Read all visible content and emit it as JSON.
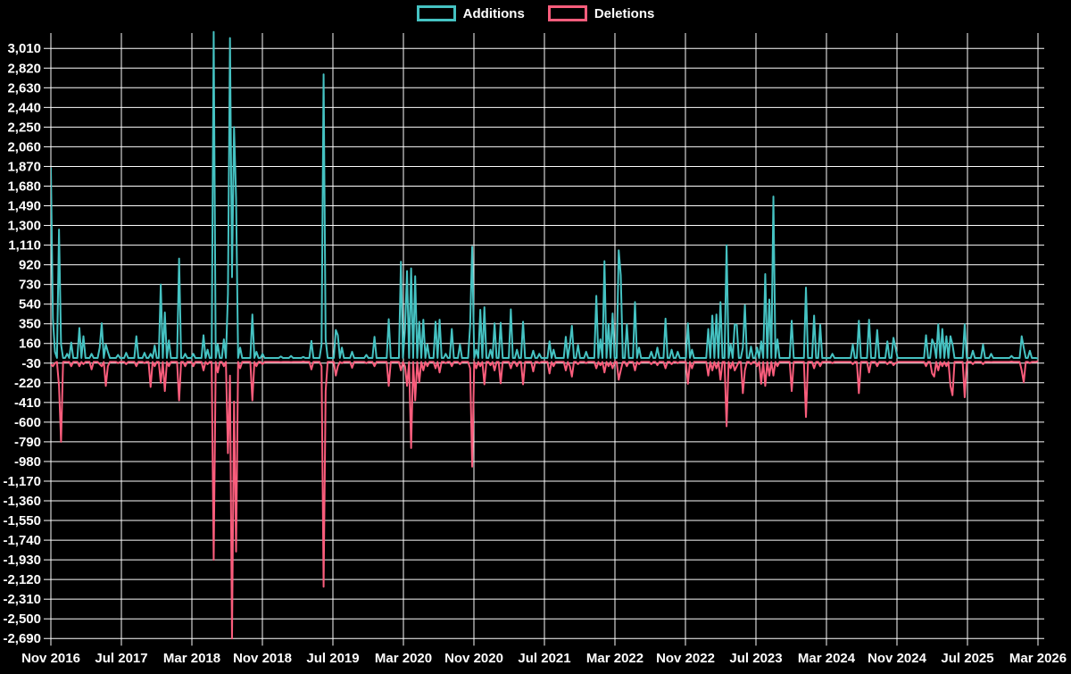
{
  "legend": {
    "additions_label": "Additions",
    "deletions_label": "Deletions"
  },
  "colors": {
    "background": "#000000",
    "grid": "#fdfdfd",
    "text": "#ffffff",
    "additions": "#45c2c2",
    "deletions": "#fa5d7c"
  },
  "chart_data": {
    "type": "line",
    "title": "",
    "xlabel": "",
    "ylabel": "",
    "grid": true,
    "legend_position": "top-center",
    "series_names": [
      "Additions",
      "Deletions"
    ],
    "x_axis": {
      "tick_labels": [
        "Nov 2016",
        "Jul 2017",
        "Mar 2018",
        "Nov 2018",
        "Jul 2019",
        "Mar 2020",
        "Nov 2020",
        "Jul 2021",
        "Mar 2022",
        "Nov 2022",
        "Jul 2023",
        "Mar 2024",
        "Nov 2024",
        "Jul 2025",
        "Mar 2026"
      ],
      "months_per_tick": 8
    },
    "y_axis": {
      "min": -2690,
      "max": 3010,
      "step": 190,
      "tick_labels": [
        "3,010",
        "2,820",
        "2,630",
        "2,440",
        "2,250",
        "2,060",
        "1,870",
        "1,680",
        "1,490",
        "1,300",
        "1,110",
        "920",
        "730",
        "540",
        "350",
        "160",
        "-30",
        "-220",
        "-410",
        "-600",
        "-790",
        "-980",
        "-1,170",
        "-1,360",
        "-1,550",
        "-1,740",
        "-1,930",
        "-2,120",
        "-2,310",
        "-2,500",
        "-2,690"
      ]
    },
    "weeks": 486,
    "baseline": {
      "additions": 20,
      "deletions": -18
    },
    "points_format": [
      "week_index",
      "additions",
      "deletions"
    ],
    "points": [
      [
        0,
        1860,
        -40
      ],
      [
        1,
        400,
        -60
      ],
      [
        2,
        80,
        -30
      ],
      [
        4,
        1260,
        -250
      ],
      [
        5,
        150,
        -790
      ],
      [
        8,
        60,
        -20
      ],
      [
        10,
        170,
        -60
      ],
      [
        14,
        310,
        -60
      ],
      [
        16,
        230,
        -40
      ],
      [
        20,
        60,
        -90
      ],
      [
        24,
        120,
        -40
      ],
      [
        25,
        355,
        -60
      ],
      [
        27,
        150,
        -250
      ],
      [
        28,
        80,
        -60
      ],
      [
        33,
        50,
        -30
      ],
      [
        37,
        70,
        -40
      ],
      [
        42,
        230,
        -60
      ],
      [
        46,
        70,
        -30
      ],
      [
        49,
        60,
        -260
      ],
      [
        51,
        140,
        -60
      ],
      [
        54,
        730,
        -220
      ],
      [
        56,
        460,
        -300
      ],
      [
        58,
        190,
        -60
      ],
      [
        63,
        980,
        -390
      ],
      [
        66,
        60,
        -60
      ],
      [
        70,
        60,
        -60
      ],
      [
        75,
        240,
        -100
      ],
      [
        77,
        100,
        -40
      ],
      [
        80,
        3170,
        -1930
      ],
      [
        82,
        150,
        -120
      ],
      [
        85,
        200,
        -60
      ],
      [
        87,
        640,
        -900
      ],
      [
        88,
        3110,
        -150
      ],
      [
        89,
        800,
        -2690
      ],
      [
        90,
        2250,
        -400
      ],
      [
        91,
        1560,
        -1850
      ],
      [
        93,
        120,
        -80
      ],
      [
        99,
        440,
        -390
      ],
      [
        101,
        80,
        -60
      ],
      [
        104,
        60,
        -40
      ],
      [
        113,
        35,
        -20
      ],
      [
        118,
        40,
        -20
      ],
      [
        124,
        30,
        -15
      ],
      [
        128,
        185,
        -90
      ],
      [
        133,
        150,
        -60
      ],
      [
        134,
        2760,
        -2190
      ],
      [
        135,
        200,
        -300
      ],
      [
        140,
        290,
        -150
      ],
      [
        141,
        240,
        -60
      ],
      [
        143,
        120,
        -30
      ],
      [
        148,
        80,
        -75
      ],
      [
        155,
        50,
        -30
      ],
      [
        159,
        225,
        -60
      ],
      [
        166,
        395,
        -250
      ],
      [
        172,
        950,
        -100
      ],
      [
        174,
        300,
        -60
      ],
      [
        175,
        860,
        -250
      ],
      [
        177,
        885,
        -850
      ],
      [
        179,
        810,
        -390
      ],
      [
        181,
        370,
        -215
      ],
      [
        183,
        390,
        -100
      ],
      [
        185,
        150,
        -60
      ],
      [
        189,
        370,
        -80
      ],
      [
        191,
        390,
        -120
      ],
      [
        194,
        60,
        -30
      ],
      [
        197,
        300,
        -60
      ],
      [
        201,
        150,
        -40
      ],
      [
        206,
        330,
        -80
      ],
      [
        207,
        1095,
        -1030
      ],
      [
        209,
        100,
        -80
      ],
      [
        211,
        485,
        -60
      ],
      [
        213,
        510,
        -235
      ],
      [
        216,
        100,
        -50
      ],
      [
        218,
        355,
        -100
      ],
      [
        221,
        360,
        -225
      ],
      [
        226,
        490,
        -80
      ],
      [
        229,
        100,
        -60
      ],
      [
        232,
        370,
        -235
      ],
      [
        237,
        90,
        -110
      ],
      [
        240,
        60,
        -30
      ],
      [
        245,
        180,
        -130
      ],
      [
        247,
        100,
        -60
      ],
      [
        253,
        225,
        -100
      ],
      [
        255,
        150,
        -60
      ],
      [
        256,
        330,
        -160
      ],
      [
        259,
        145,
        -40
      ],
      [
        263,
        80,
        -30
      ],
      [
        268,
        620,
        -80
      ],
      [
        270,
        200,
        -50
      ],
      [
        272,
        955,
        -120
      ],
      [
        274,
        350,
        -60
      ],
      [
        276,
        450,
        -80
      ],
      [
        279,
        1060,
        -190
      ],
      [
        280,
        820,
        -100
      ],
      [
        283,
        345,
        -60
      ],
      [
        287,
        560,
        -100
      ],
      [
        289,
        120,
        -40
      ],
      [
        295,
        80,
        -40
      ],
      [
        298,
        120,
        -50
      ],
      [
        302,
        400,
        -80
      ],
      [
        305,
        100,
        -40
      ],
      [
        308,
        80,
        -30
      ],
      [
        313,
        355,
        -230
      ],
      [
        315,
        100,
        -80
      ],
      [
        323,
        300,
        -150
      ],
      [
        325,
        430,
        -100
      ],
      [
        327,
        440,
        -80
      ],
      [
        329,
        560,
        -190
      ],
      [
        332,
        1110,
        -640
      ],
      [
        334,
        150,
        -80
      ],
      [
        336,
        345,
        -100
      ],
      [
        337,
        340,
        -60
      ],
      [
        340,
        120,
        -320
      ],
      [
        341,
        530,
        -100
      ],
      [
        344,
        130,
        -40
      ],
      [
        347,
        120,
        -60
      ],
      [
        349,
        180,
        -230
      ],
      [
        351,
        830,
        -250
      ],
      [
        353,
        585,
        -150
      ],
      [
        355,
        1580,
        -150
      ],
      [
        357,
        200,
        -60
      ],
      [
        364,
        380,
        -300
      ],
      [
        371,
        700,
        -550
      ],
      [
        375,
        430,
        -80
      ],
      [
        378,
        340,
        -60
      ],
      [
        384,
        60,
        -30
      ],
      [
        394,
        150,
        -40
      ],
      [
        397,
        380,
        -320
      ],
      [
        402,
        390,
        -120
      ],
      [
        406,
        290,
        -60
      ],
      [
        411,
        180,
        -40
      ],
      [
        414,
        215,
        -50
      ],
      [
        415,
        120,
        -30
      ],
      [
        430,
        240,
        -60
      ],
      [
        433,
        200,
        -130
      ],
      [
        434,
        150,
        -160
      ],
      [
        436,
        345,
        -100
      ],
      [
        438,
        300,
        -60
      ],
      [
        440,
        230,
        -60
      ],
      [
        442,
        230,
        -250
      ],
      [
        443,
        150,
        -340
      ],
      [
        449,
        345,
        -360
      ],
      [
        453,
        90,
        -40
      ],
      [
        458,
        150,
        -40
      ],
      [
        462,
        60,
        -20
      ],
      [
        472,
        40,
        -15
      ],
      [
        477,
        230,
        -100
      ],
      [
        478,
        120,
        -215
      ],
      [
        481,
        90,
        -30
      ],
      [
        485,
        15,
        -10
      ]
    ]
  }
}
